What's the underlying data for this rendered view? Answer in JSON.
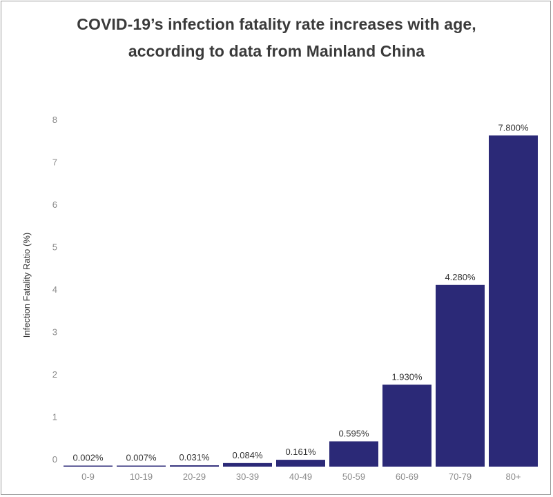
{
  "title_lines": [
    "COVID-19’s infection fatality rate increases with age,",
    "according to data from Mainland China"
  ],
  "colors": {
    "bar": "#2b2977",
    "title": "#3a3a3a",
    "tick": "#8a8a8a",
    "data_label": "#333333"
  },
  "chart_data": {
    "type": "bar",
    "title": "COVID-19’s infection fatality rate increases with age, according to data from Mainland China",
    "xlabel": "",
    "ylabel": "Infection Fatality Ratio (%)",
    "categories": [
      "0-9",
      "10-19",
      "20-29",
      "30-39",
      "40-49",
      "50-59",
      "60-69",
      "70-79",
      "80+"
    ],
    "values": [
      0.002,
      0.007,
      0.031,
      0.084,
      0.161,
      0.595,
      1.93,
      4.28,
      7.8
    ],
    "value_labels": [
      "0.002%",
      "0.007%",
      "0.031%",
      "0.084%",
      "0.161%",
      "0.595%",
      "1.930%",
      "4.280%",
      "7.800%"
    ],
    "ylim": [
      0,
      8
    ],
    "yticks": [
      0,
      1,
      2,
      3,
      4,
      5,
      6,
      7,
      8
    ],
    "ytick_labels": [
      "0",
      "1",
      "2",
      "3",
      "4",
      "5",
      "6",
      "7",
      "8"
    ],
    "grid": false,
    "legend": "none"
  }
}
